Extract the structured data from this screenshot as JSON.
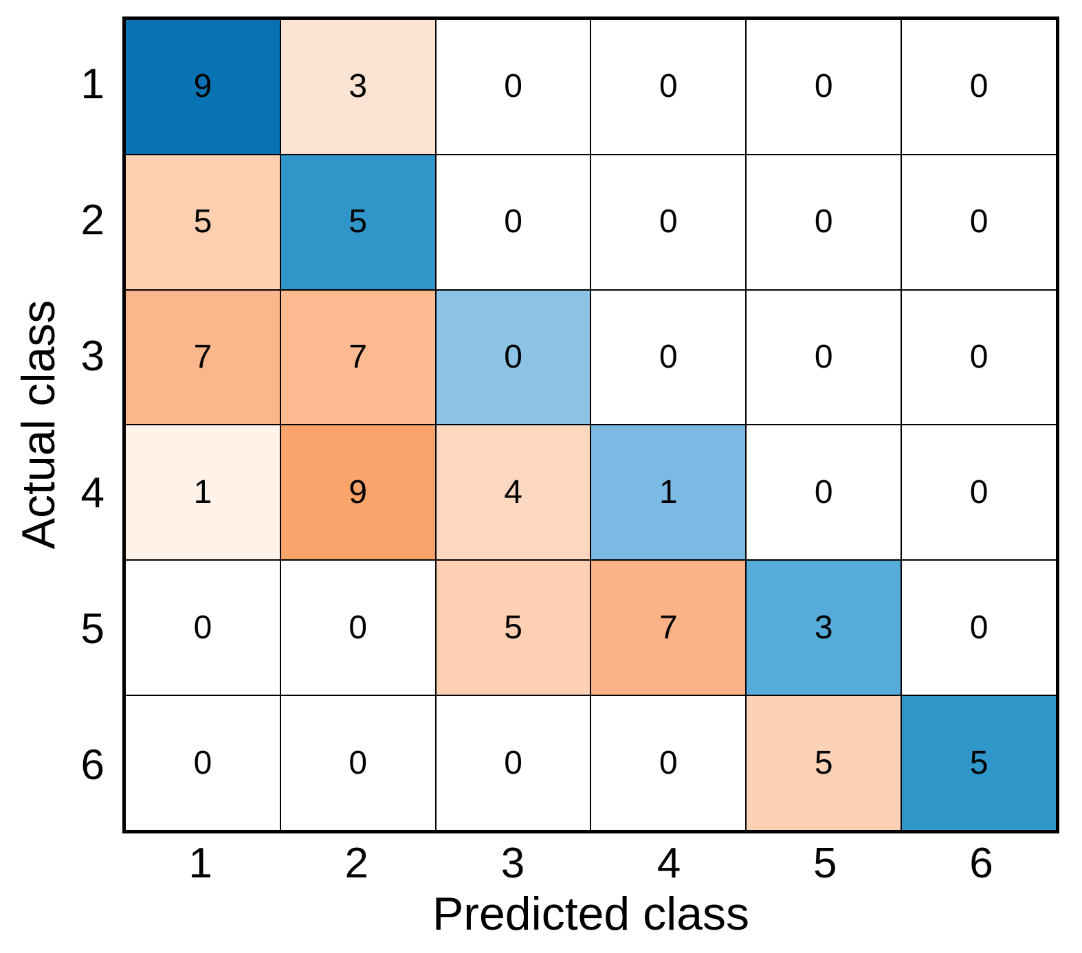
{
  "chart_data": {
    "type": "heatmap",
    "subtype": "confusion-matrix",
    "title": "",
    "xlabel": "Predicted class",
    "ylabel": "Actual class",
    "x_tick_labels": [
      "1",
      "2",
      "3",
      "4",
      "5",
      "6"
    ],
    "y_tick_labels": [
      "1",
      "2",
      "3",
      "4",
      "5",
      "6"
    ],
    "matrix": [
      [
        9,
        3,
        0,
        0,
        0,
        0
      ],
      [
        5,
        5,
        0,
        0,
        0,
        0
      ],
      [
        7,
        7,
        0,
        0,
        0,
        0
      ],
      [
        1,
        9,
        4,
        1,
        0,
        0
      ],
      [
        0,
        0,
        5,
        7,
        3,
        0
      ],
      [
        0,
        0,
        0,
        0,
        5,
        5
      ]
    ],
    "cell_colors": [
      [
        "#0872B2",
        "#FBE3D4",
        "#FFFFFF",
        "#FFFFFF",
        "#FFFFFF",
        "#FFFFFF"
      ],
      [
        "#FCCFB1",
        "#3096CA",
        "#FFFFFF",
        "#FFFFFF",
        "#FFFFFF",
        "#FFFFFF"
      ],
      [
        "#FBB78C",
        "#FBBA90",
        "#8DC4E5",
        "#FFFFFF",
        "#FFFFFF",
        "#FFFFFF"
      ],
      [
        "#FEF2E9",
        "#FAA46C",
        "#FDD8C0",
        "#7BBAE2",
        "#FFFFFF",
        "#FFFFFF"
      ],
      [
        "#FFFFFF",
        "#FFFFFF",
        "#FDD0B3",
        "#FBB286",
        "#56ABD8",
        "#FFFFFF"
      ],
      [
        "#FFFFFF",
        "#FFFFFF",
        "#FFFFFF",
        "#FFFFFF",
        "#FCD2B6",
        "#2F97CA"
      ]
    ],
    "colors": {
      "diagonal_base": "#0872B2",
      "offdiagonal_base": "#FAA46C",
      "grid_line": "#000000",
      "background": "#FFFFFF",
      "cell_text": "#000000"
    },
    "layout": {
      "grid": "on",
      "legend": "none",
      "rows": 6,
      "cols": 6
    }
  }
}
